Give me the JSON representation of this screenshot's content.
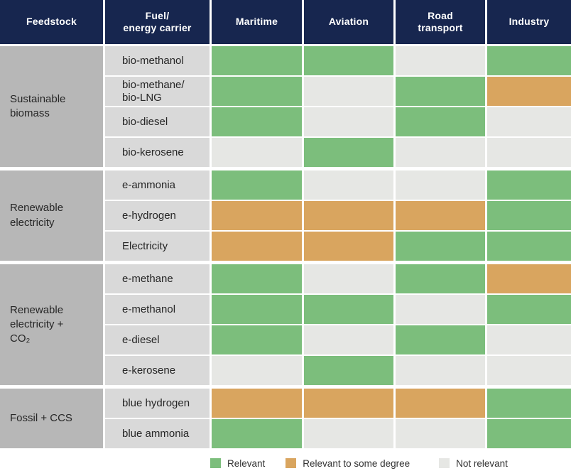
{
  "colors": {
    "header_bg": "#17264F",
    "feedstock_bg": "#B7B7B7",
    "fuel_bg": "#D9D9D9",
    "relevant": "#7CBE7C",
    "some_degree": "#D9A55F",
    "not_relevant": "#E6E7E4"
  },
  "header": {
    "feedstock": "Feedstock",
    "fuel": "Fuel/\nenergy carrier",
    "maritime": "Maritime",
    "aviation": "Aviation",
    "road": "Road\ntransport",
    "industry": "Industry"
  },
  "chart_data": {
    "type": "heatmap",
    "columns": [
      "Maritime",
      "Aviation",
      "Road transport",
      "Industry"
    ],
    "groups": [
      {
        "feedstock": "Sustainable\nbiomass",
        "rows": [
          {
            "fuel": "bio-methanol",
            "values": [
              "relevant",
              "relevant",
              "not",
              "relevant"
            ]
          },
          {
            "fuel": "bio-methane/\nbio-LNG",
            "values": [
              "relevant",
              "not",
              "relevant",
              "some"
            ]
          },
          {
            "fuel": "bio-diesel",
            "values": [
              "relevant",
              "not",
              "relevant",
              "not"
            ]
          },
          {
            "fuel": "bio-kerosene",
            "values": [
              "not",
              "relevant",
              "not",
              "not"
            ]
          }
        ]
      },
      {
        "feedstock": "Renewable\nelectricity",
        "rows": [
          {
            "fuel": "e-ammonia",
            "values": [
              "relevant",
              "not",
              "not",
              "relevant"
            ]
          },
          {
            "fuel": "e-hydrogen",
            "values": [
              "some",
              "some",
              "some",
              "relevant"
            ]
          },
          {
            "fuel": "Electricity",
            "values": [
              "some",
              "some",
              "relevant",
              "relevant"
            ]
          }
        ]
      },
      {
        "feedstock": "Renewable\nelectricity +\nCO₂",
        "rows": [
          {
            "fuel": "e-methane",
            "values": [
              "relevant",
              "not",
              "relevant",
              "some"
            ]
          },
          {
            "fuel": "e-methanol",
            "values": [
              "relevant",
              "relevant",
              "not",
              "relevant"
            ]
          },
          {
            "fuel": "e-diesel",
            "values": [
              "relevant",
              "not",
              "relevant",
              "not"
            ]
          },
          {
            "fuel": "e-kerosene",
            "values": [
              "not",
              "relevant",
              "not",
              "not"
            ]
          }
        ]
      },
      {
        "feedstock": "Fossil + CCS",
        "rows": [
          {
            "fuel": "blue hydrogen",
            "values": [
              "some",
              "some",
              "some",
              "relevant"
            ]
          },
          {
            "fuel": "blue ammonia",
            "values": [
              "relevant",
              "not",
              "not",
              "relevant"
            ]
          }
        ]
      }
    ],
    "legend": [
      {
        "key": "relevant",
        "label": "Relevant",
        "color": "#7CBE7C"
      },
      {
        "key": "some",
        "label": "Relevant to some degree",
        "color": "#D9A55F"
      },
      {
        "key": "not",
        "label": "Not relevant",
        "color": "#E6E7E4"
      }
    ],
    "title": "",
    "legend_position": "bottom"
  }
}
